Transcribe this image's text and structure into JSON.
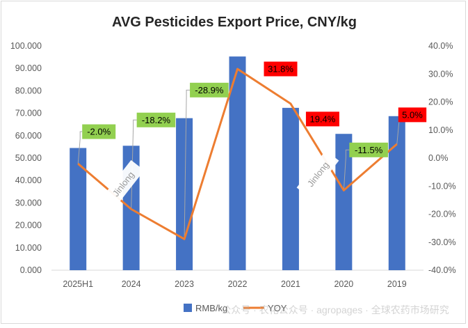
{
  "chart_data": {
    "type": "bar",
    "title": "AVG Pesticides Export Price, CNY/kg",
    "categories": [
      "2025H1",
      "2024",
      "2023",
      "2022",
      "2021",
      "2020",
      "2019"
    ],
    "series": [
      {
        "name": "RMB/kg",
        "type": "bar",
        "axis": "left",
        "color": "#4472c4",
        "values": [
          54.5,
          55.5,
          67.8,
          95.3,
          72.4,
          60.8,
          68.7
        ]
      },
      {
        "name": "YOY",
        "type": "line",
        "axis": "right",
        "color": "#ed7d31",
        "values": [
          -2.0,
          -18.2,
          -28.9,
          31.8,
          19.4,
          -11.5,
          5.0
        ],
        "value_labels": [
          "-2.0%",
          "-18.2%",
          "-28.9%",
          "31.8%",
          "19.4%",
          "-11.5%",
          "5.0%"
        ],
        "label_colors": [
          "#92d050",
          "#92d050",
          "#92d050",
          "#ff0000",
          "#ff0000",
          "#92d050",
          "#ff0000"
        ]
      }
    ],
    "left_axis": {
      "ylim": [
        0,
        100
      ],
      "ticks": [
        "0.000",
        "10.000",
        "20.000",
        "30.000",
        "40.000",
        "50.000",
        "60.000",
        "70.000",
        "80.000",
        "90.000",
        "100.000"
      ]
    },
    "right_axis": {
      "ylim": [
        -40,
        40
      ],
      "ticks": [
        "-40.0%",
        "-30.0%",
        "-20.0%",
        "-10.0%",
        "0.0%",
        "10.0%",
        "20.0%",
        "30.0%",
        "40.0%"
      ]
    },
    "grid": false,
    "legend_position": "bottom"
  },
  "watermarks": {
    "stamp_1": "Jinlong",
    "stamp_2": "Jinlong",
    "bottom": "公众号 · 农化公众号 · agropages · 全球农药市场研究"
  }
}
